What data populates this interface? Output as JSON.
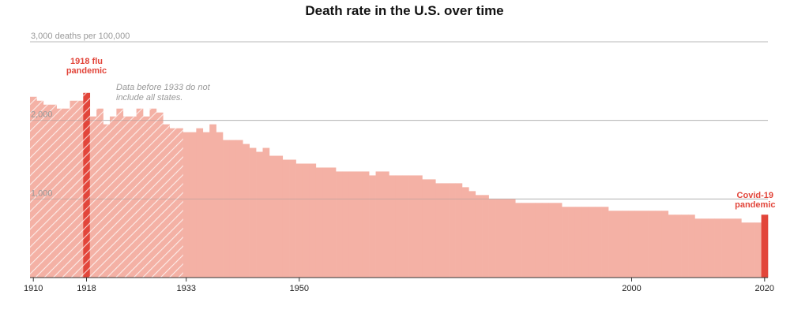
{
  "chart_data": {
    "type": "bar",
    "title": "Death rate in the U.S. over time",
    "ylim": [
      0,
      3000
    ],
    "y_ticks": [
      {
        "value": 3000,
        "label": "3,000 deaths per 100,000"
      },
      {
        "value": 2000,
        "label": "2,000"
      },
      {
        "value": 1000,
        "label": "1,000"
      }
    ],
    "x_ticks": [
      1910,
      1918,
      1933,
      1950,
      2000,
      2020
    ],
    "grid": true,
    "colors": {
      "bar": "#f4b1a5",
      "highlight": "#e2453a",
      "hatch": "#ffffff",
      "grid": "#cccccc",
      "note": "#999999"
    },
    "hatched_before": 1933,
    "highlights": [
      1918,
      2020
    ],
    "x": [
      1910,
      1911,
      1912,
      1913,
      1914,
      1915,
      1916,
      1917,
      1918,
      1919,
      1920,
      1921,
      1922,
      1923,
      1924,
      1925,
      1926,
      1927,
      1928,
      1929,
      1930,
      1931,
      1932,
      1933,
      1934,
      1935,
      1936,
      1937,
      1938,
      1939,
      1940,
      1941,
      1942,
      1943,
      1944,
      1945,
      1946,
      1947,
      1948,
      1949,
      1950,
      1951,
      1952,
      1953,
      1954,
      1955,
      1956,
      1957,
      1958,
      1959,
      1960,
      1961,
      1962,
      1963,
      1964,
      1965,
      1966,
      1967,
      1968,
      1969,
      1970,
      1971,
      1972,
      1973,
      1974,
      1975,
      1976,
      1977,
      1978,
      1979,
      1980,
      1981,
      1982,
      1983,
      1984,
      1985,
      1986,
      1987,
      1988,
      1989,
      1990,
      1991,
      1992,
      1993,
      1994,
      1995,
      1996,
      1997,
      1998,
      1999,
      2000,
      2001,
      2002,
      2003,
      2004,
      2005,
      2006,
      2007,
      2008,
      2009,
      2010,
      2011,
      2012,
      2013,
      2014,
      2015,
      2016,
      2017,
      2018,
      2019,
      2020
    ],
    "values": [
      2300,
      2250,
      2200,
      2200,
      2150,
      2150,
      2250,
      2250,
      2350,
      2050,
      2150,
      1950,
      2050,
      2150,
      2050,
      2050,
      2150,
      2050,
      2150,
      2100,
      1950,
      1900,
      1900,
      1850,
      1850,
      1900,
      1850,
      1950,
      1850,
      1750,
      1750,
      1750,
      1700,
      1650,
      1600,
      1650,
      1550,
      1550,
      1500,
      1500,
      1450,
      1450,
      1450,
      1400,
      1400,
      1400,
      1350,
      1350,
      1350,
      1350,
      1350,
      1300,
      1350,
      1350,
      1300,
      1300,
      1300,
      1300,
      1300,
      1250,
      1250,
      1200,
      1200,
      1200,
      1200,
      1150,
      1100,
      1050,
      1050,
      1000,
      1000,
      1000,
      1000,
      950,
      950,
      950,
      950,
      950,
      950,
      950,
      900,
      900,
      900,
      900,
      900,
      900,
      900,
      850,
      850,
      850,
      850,
      850,
      850,
      850,
      850,
      850,
      800,
      800,
      800,
      800,
      750,
      750,
      750,
      750,
      750,
      750,
      750,
      700,
      700,
      700,
      800
    ],
    "annotations": {
      "flu": "1918 flu\npandemic",
      "note": "Data before 1933 do not\ninclude all states.",
      "covid": "Covid-19\npandemic"
    }
  }
}
